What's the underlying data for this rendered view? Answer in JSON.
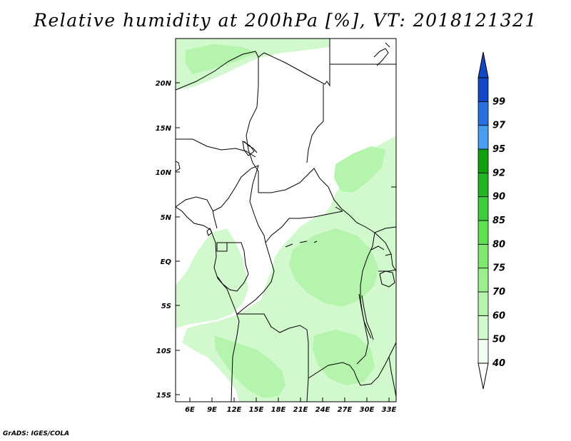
{
  "title": "Relative humidity at 200hPa [%], VT: 2018121321",
  "credit": "GrADS: IGES/COLA",
  "map": {
    "lat_labels": [
      "20N",
      "15N",
      "10N",
      "5N",
      "EQ",
      "5S",
      "10S",
      "15S"
    ],
    "lon_labels": [
      "6E",
      "9E",
      "12E",
      "15E",
      "18E",
      "21E",
      "24E",
      "27E",
      "30E",
      "33E"
    ]
  },
  "colorbar": {
    "levels": [
      "40",
      "50",
      "60",
      "70",
      "75",
      "80",
      "85",
      "90",
      "92",
      "95",
      "97",
      "99"
    ],
    "colors": [
      "#f0fcf0",
      "#d2f9cd",
      "#b5f4ac",
      "#9af08e",
      "#7ee86f",
      "#5fe050",
      "#3ccc3c",
      "#22b424",
      "#10a010",
      "#4a9cf0",
      "#2a6fe0",
      "#1446c8"
    ],
    "top_color": "#1446c8",
    "bottom_color": "#ffffff"
  },
  "colors": {
    "light_green": "#d2f9cd",
    "mid_green": "#b5f4ac",
    "border": "#000000"
  }
}
